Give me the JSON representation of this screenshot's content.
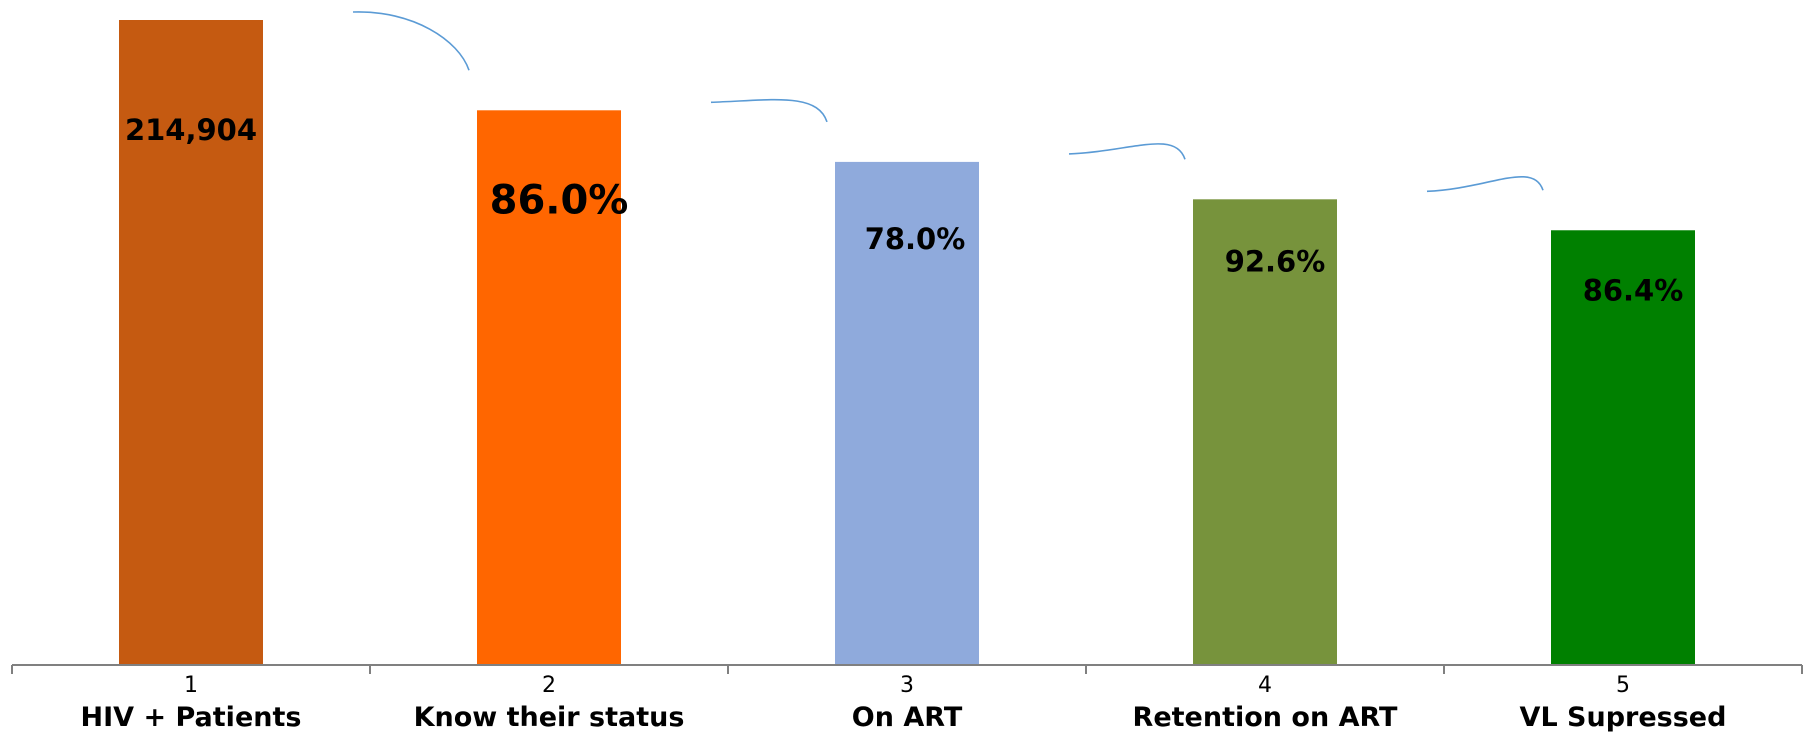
{
  "chart_data": {
    "type": "bar",
    "title": "",
    "xlabel": "",
    "ylabel": "",
    "grid": false,
    "legend": "none",
    "ylim": [
      0,
      100
    ],
    "categories": [
      "HIV + Patients",
      "Know their status",
      "On ART",
      "Retention on ART",
      "VL Supressed"
    ],
    "tick_numbers": [
      "1",
      "2",
      "3",
      "4",
      "5"
    ],
    "values": [
      100,
      86.0,
      78.0,
      72.2,
      67.4
    ],
    "data_labels": [
      "214,904",
      "86.0%",
      "78.0%",
      "92.6%",
      "86.4%"
    ],
    "colors": [
      "#c55a11",
      "#ff6600",
      "#8faadc",
      "#77933c",
      "#008000"
    ],
    "arc_color": "#5b9bd5",
    "axis_color": "#808080"
  }
}
